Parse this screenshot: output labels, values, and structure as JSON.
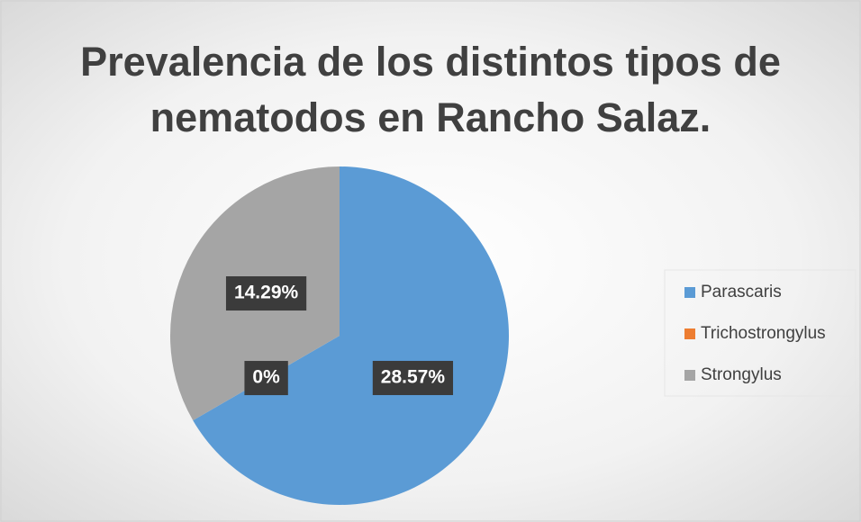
{
  "chart_data": {
    "type": "pie",
    "title": "Prevalencia de los distintos tipos de nematodos en Rancho Salaz.",
    "categories": [
      "Parascaris",
      "Trichostrongylus",
      "Strongylus"
    ],
    "values": [
      28.57,
      0,
      14.29
    ],
    "value_labels": [
      "28.57%",
      "0%",
      "14.29%"
    ],
    "colors": [
      "#5b9bd5",
      "#ed7d31",
      "#a5a5a5"
    ],
    "legend": "right"
  }
}
